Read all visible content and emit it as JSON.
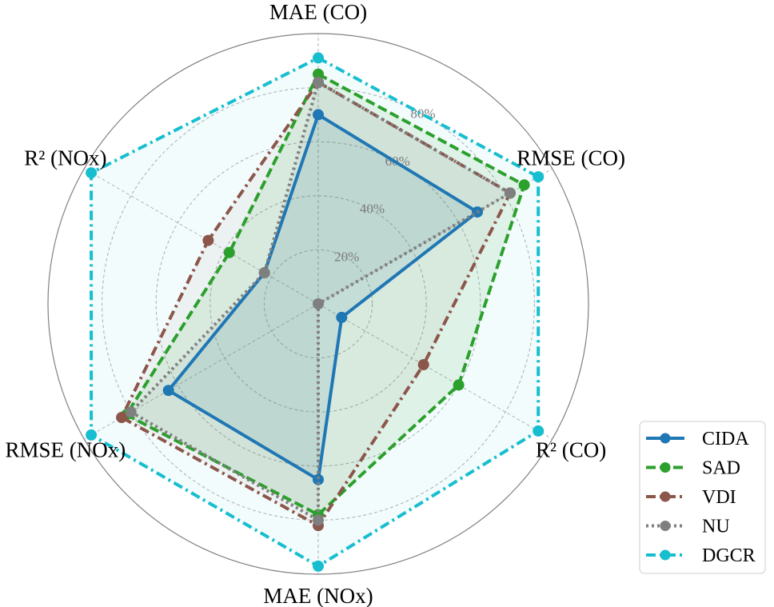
{
  "chart_data": {
    "type": "radar",
    "axes": [
      "MAE (CO)",
      "RMSE (CO)",
      "R² (CO)",
      "MAE (NOx)",
      "RMSE (NOx)",
      "R² (NOx)"
    ],
    "radial_ticks": [
      0.2,
      0.4,
      0.6,
      0.8
    ],
    "radial_tick_labels": [
      "20%",
      "40%",
      "60%",
      "80%"
    ],
    "rmax": 1.0,
    "grid": true,
    "legend_position": "bottom-right",
    "series": [
      {
        "name": "CIDA",
        "values": [
          0.7,
          0.68,
          0.1,
          0.65,
          0.64,
          0.23
        ],
        "color": "#1f77b4",
        "dash": "solid",
        "fill_opacity": 0.1
      },
      {
        "name": "SAD",
        "values": [
          0.85,
          0.88,
          0.6,
          0.78,
          0.82,
          0.38
        ],
        "color": "#2ca02c",
        "dash": "dashed",
        "fill_opacity": 0.1
      },
      {
        "name": "VDI",
        "values": [
          0.82,
          0.82,
          0.45,
          0.82,
          0.84,
          0.47
        ],
        "color": "#8c564b",
        "dash": "dashdot",
        "fill_opacity": 0.06
      },
      {
        "name": "NU",
        "values": [
          0.82,
          0.82,
          0.0,
          0.8,
          0.8,
          0.23
        ],
        "color": "#7f7f7f",
        "dash": "dotted",
        "fill_opacity": 0.06
      },
      {
        "name": "DGCR",
        "values": [
          0.91,
          0.94,
          0.94,
          0.97,
          0.97,
          0.97
        ],
        "color": "#17becf",
        "dash": "dashdot",
        "fill_opacity": 0.05
      }
    ]
  }
}
